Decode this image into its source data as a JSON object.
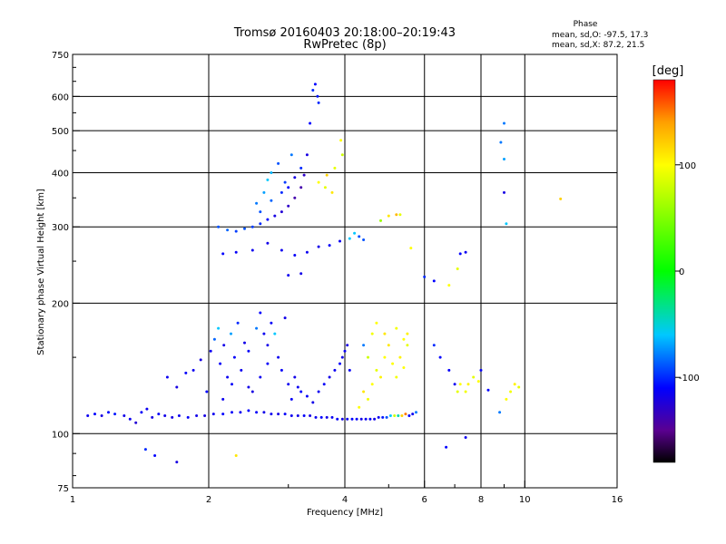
{
  "chart_data": {
    "type": "scatter",
    "title": "Tromsø 20160403 20:18:00–20:19:43",
    "subtitle": "RwPretec (8p)",
    "xlabel": "Frequency [MHz]",
    "ylabel": "Stationary phase Virtual Height [km]",
    "x_scale": "log",
    "y_scale": "log",
    "xlim": [
      1,
      16
    ],
    "ylim": [
      75,
      750
    ],
    "grid": true,
    "x_ticks": [
      {
        "value": 1,
        "label": "1"
      },
      {
        "value": 2,
        "label": "2"
      },
      {
        "value": 4,
        "label": "4"
      },
      {
        "value": 6,
        "label": "6"
      },
      {
        "value": 8,
        "label": "8"
      },
      {
        "value": 10,
        "label": "10"
      },
      {
        "value": 16,
        "label": "16"
      }
    ],
    "y_ticks": [
      {
        "value": 75,
        "label": "75"
      },
      {
        "value": 100,
        "label": "100"
      },
      {
        "value": 200,
        "label": "200"
      },
      {
        "value": 300,
        "label": "300"
      },
      {
        "value": 400,
        "label": "400"
      },
      {
        "value": 500,
        "label": "500"
      },
      {
        "value": 600,
        "label": "600"
      },
      {
        "value": 750,
        "label": "750"
      }
    ],
    "x_minor_ticks": [
      3,
      5,
      7,
      9
    ],
    "y_minor_ticks": [
      80,
      90,
      150,
      250,
      350,
      450,
      550,
      650,
      700
    ],
    "phase_stats": {
      "title": "Phase",
      "line_o": "mean, sd,O: -97.5, 17.3",
      "line_x": "mean, sd,X:  87.2, 21.5"
    },
    "colorbar": {
      "label": "[deg]",
      "range": [
        -180,
        180
      ],
      "ticks": [
        {
          "value": 100,
          "label": "100"
        },
        {
          "value": 0,
          "label": "0"
        },
        {
          "value": -100,
          "label": "-100"
        }
      ],
      "stops": [
        {
          "value": -180,
          "color": "#000000"
        },
        {
          "value": -150,
          "color": "#5a0090"
        },
        {
          "value": -110,
          "color": "#0000ff"
        },
        {
          "value": -60,
          "color": "#00c8ff"
        },
        {
          "value": 0,
          "color": "#00ff00"
        },
        {
          "value": 70,
          "color": "#b4ff00"
        },
        {
          "value": 100,
          "color": "#ffff00"
        },
        {
          "value": 140,
          "color": "#ffa000"
        },
        {
          "value": 180,
          "color": "#ff0000"
        }
      ]
    },
    "points": [
      [
        1.08,
        110,
        -115
      ],
      [
        1.12,
        111,
        -110
      ],
      [
        1.16,
        110,
        -120
      ],
      [
        1.2,
        112,
        -108
      ],
      [
        1.24,
        111,
        -105
      ],
      [
        1.3,
        110,
        -118
      ],
      [
        1.34,
        108,
        -115
      ],
      [
        1.38,
        106,
        -125
      ],
      [
        1.42,
        112,
        -112
      ],
      [
        1.46,
        114,
        -115
      ],
      [
        1.5,
        109,
        -120
      ],
      [
        1.55,
        111,
        -112
      ],
      [
        1.6,
        110,
        -118
      ],
      [
        1.66,
        109,
        -120
      ],
      [
        1.72,
        110,
        -115
      ],
      [
        1.8,
        109,
        -112
      ],
      [
        1.88,
        110,
        -118
      ],
      [
        1.96,
        110,
        -120
      ],
      [
        2.05,
        111,
        -115
      ],
      [
        2.15,
        111,
        -110
      ],
      [
        2.25,
        112,
        -112
      ],
      [
        2.35,
        112,
        -115
      ],
      [
        2.45,
        113,
        -110
      ],
      [
        2.55,
        112,
        -112
      ],
      [
        2.65,
        112,
        -118
      ],
      [
        2.75,
        111,
        -115
      ],
      [
        2.85,
        111,
        -120
      ],
      [
        2.95,
        111,
        -112
      ],
      [
        3.05,
        110,
        -115
      ],
      [
        3.15,
        110,
        -118
      ],
      [
        3.25,
        110,
        -112
      ],
      [
        3.35,
        110,
        -120
      ],
      [
        3.45,
        109,
        -115
      ],
      [
        3.55,
        109,
        -110
      ],
      [
        3.65,
        109,
        -118
      ],
      [
        3.75,
        109,
        -115
      ],
      [
        3.85,
        108,
        -112
      ],
      [
        3.95,
        108,
        -118
      ],
      [
        4.05,
        108,
        -115
      ],
      [
        4.15,
        108,
        -110
      ],
      [
        4.25,
        108,
        -112
      ],
      [
        4.35,
        108,
        -118
      ],
      [
        4.45,
        108,
        -115
      ],
      [
        4.55,
        108,
        -112
      ],
      [
        4.65,
        108,
        -118
      ],
      [
        4.75,
        109,
        -115
      ],
      [
        4.85,
        109,
        -105
      ],
      [
        4.95,
        109,
        -90
      ],
      [
        5.05,
        110,
        -60
      ],
      [
        5.15,
        110,
        80
      ],
      [
        5.25,
        110,
        -40
      ],
      [
        5.35,
        110,
        120
      ],
      [
        5.45,
        111,
        150
      ],
      [
        5.55,
        110,
        -110
      ],
      [
        5.65,
        111,
        -115
      ],
      [
        5.75,
        112,
        -80
      ],
      [
        1.62,
        135,
        -115
      ],
      [
        1.7,
        128,
        -120
      ],
      [
        1.78,
        138,
        -112
      ],
      [
        1.85,
        140,
        -115
      ],
      [
        1.92,
        148,
        -120
      ],
      [
        1.98,
        125,
        -110
      ],
      [
        2.02,
        155,
        -115
      ],
      [
        2.06,
        165,
        -85
      ],
      [
        2.1,
        175,
        -60
      ],
      [
        2.12,
        145,
        -112
      ],
      [
        2.16,
        160,
        -118
      ],
      [
        2.2,
        135,
        -115
      ],
      [
        2.24,
        170,
        -70
      ],
      [
        2.28,
        150,
        -112
      ],
      [
        2.32,
        180,
        -100
      ],
      [
        2.36,
        140,
        -115
      ],
      [
        2.4,
        162,
        -118
      ],
      [
        2.45,
        155,
        -112
      ],
      [
        2.5,
        125,
        -120
      ],
      [
        2.55,
        175,
        -80
      ],
      [
        2.6,
        190,
        -110
      ],
      [
        2.65,
        170,
        -115
      ],
      [
        2.7,
        160,
        -118
      ],
      [
        2.75,
        180,
        -112
      ],
      [
        2.8,
        170,
        -60
      ],
      [
        2.85,
        150,
        -115
      ],
      [
        2.9,
        140,
        -112
      ],
      [
        2.95,
        185,
        -118
      ],
      [
        3.0,
        130,
        -115
      ],
      [
        3.05,
        120,
        -112
      ],
      [
        3.1,
        135,
        -118
      ],
      [
        3.15,
        128,
        -115
      ],
      [
        3.2,
        125,
        -110
      ],
      [
        3.3,
        122,
        -112
      ],
      [
        3.4,
        118,
        -118
      ],
      [
        3.5,
        125,
        -115
      ],
      [
        3.6,
        130,
        -112
      ],
      [
        3.7,
        135,
        -118
      ],
      [
        3.8,
        140,
        -115
      ],
      [
        3.9,
        145,
        -112
      ],
      [
        3.95,
        150,
        -118
      ],
      [
        4.0,
        155,
        -115
      ],
      [
        4.05,
        160,
        -120
      ],
      [
        4.1,
        140,
        -112
      ],
      [
        2.15,
        120,
        -115
      ],
      [
        2.25,
        130,
        -112
      ],
      [
        2.45,
        128,
        -118
      ],
      [
        2.6,
        135,
        -115
      ],
      [
        2.7,
        145,
        -112
      ],
      [
        2.1,
        300,
        -90
      ],
      [
        2.2,
        295,
        -85
      ],
      [
        2.3,
        293,
        -95
      ],
      [
        2.4,
        297,
        -90
      ],
      [
        2.5,
        300,
        -95
      ],
      [
        2.6,
        305,
        -100
      ],
      [
        2.7,
        312,
        -110
      ],
      [
        2.8,
        318,
        -120
      ],
      [
        2.9,
        325,
        -125
      ],
      [
        3.0,
        335,
        -130
      ],
      [
        3.1,
        350,
        -140
      ],
      [
        3.2,
        370,
        -140
      ],
      [
        3.25,
        395,
        -130
      ],
      [
        3.3,
        440,
        -120
      ],
      [
        3.35,
        520,
        -110
      ],
      [
        3.4,
        620,
        -100
      ],
      [
        3.44,
        640,
        -110
      ],
      [
        3.48,
        600,
        -105
      ],
      [
        3.5,
        580,
        -100
      ],
      [
        2.55,
        340,
        -80
      ],
      [
        2.65,
        360,
        -70
      ],
      [
        2.7,
        385,
        -60
      ],
      [
        2.75,
        400,
        -65
      ],
      [
        2.85,
        420,
        -90
      ],
      [
        2.95,
        380,
        -95
      ],
      [
        3.05,
        440,
        -80
      ],
      [
        2.6,
        325,
        -90
      ],
      [
        2.75,
        345,
        -85
      ],
      [
        2.9,
        360,
        -100
      ],
      [
        3.0,
        370,
        -110
      ],
      [
        3.1,
        390,
        -120
      ],
      [
        3.2,
        410,
        -100
      ],
      [
        2.15,
        260,
        -110
      ],
      [
        2.3,
        262,
        -112
      ],
      [
        2.5,
        265,
        -115
      ],
      [
        2.7,
        275,
        -118
      ],
      [
        2.9,
        265,
        -115
      ],
      [
        3.1,
        258,
        -112
      ],
      [
        3.3,
        262,
        -115
      ],
      [
        3.5,
        270,
        -118
      ],
      [
        3.7,
        272,
        -112
      ],
      [
        3.9,
        278,
        -115
      ],
      [
        4.1,
        282,
        -60
      ],
      [
        4.3,
        285,
        -90
      ],
      [
        3.0,
        232,
        -115
      ],
      [
        3.2,
        234,
        -118
      ],
      [
        3.5,
        380,
        100
      ],
      [
        3.65,
        395,
        120
      ],
      [
        3.8,
        410,
        90
      ],
      [
        3.95,
        440,
        80
      ],
      [
        3.92,
        475,
        100
      ],
      [
        3.75,
        360,
        110
      ],
      [
        3.62,
        370,
        90
      ],
      [
        4.3,
        115,
        100
      ],
      [
        4.4,
        125,
        110
      ],
      [
        4.5,
        120,
        95
      ],
      [
        4.6,
        130,
        100
      ],
      [
        4.7,
        140,
        90
      ],
      [
        4.8,
        135,
        105
      ],
      [
        4.9,
        150,
        100
      ],
      [
        5.0,
        160,
        110
      ],
      [
        5.1,
        145,
        100
      ],
      [
        5.2,
        135,
        95
      ],
      [
        5.3,
        150,
        105
      ],
      [
        5.4,
        142,
        100
      ],
      [
        5.5,
        160,
        90
      ],
      [
        4.5,
        150,
        80
      ],
      [
        4.4,
        160,
        -80
      ],
      [
        4.6,
        170,
        95
      ],
      [
        4.7,
        180,
        100
      ],
      [
        4.9,
        170,
        110
      ],
      [
        5.2,
        175,
        95
      ],
      [
        5.4,
        165,
        100
      ],
      [
        5.5,
        170,
        105
      ],
      [
        6.3,
        160,
        -100
      ],
      [
        6.5,
        150,
        -110
      ],
      [
        6.8,
        140,
        -112
      ],
      [
        7.0,
        130,
        -115
      ],
      [
        7.1,
        125,
        90
      ],
      [
        7.2,
        130,
        100
      ],
      [
        7.4,
        125,
        95
      ],
      [
        7.5,
        130,
        105
      ],
      [
        7.7,
        135,
        90
      ],
      [
        7.9,
        132,
        100
      ],
      [
        8.3,
        126,
        -110
      ],
      [
        8.0,
        140,
        -112
      ],
      [
        9.1,
        120,
        100
      ],
      [
        9.3,
        125,
        95
      ],
      [
        9.5,
        130,
        105
      ],
      [
        9.7,
        128,
        90
      ],
      [
        4.2,
        290,
        -60
      ],
      [
        4.4,
        280,
        -90
      ],
      [
        4.8,
        310,
        60
      ],
      [
        5.0,
        318,
        110
      ],
      [
        5.2,
        320,
        130
      ],
      [
        5.3,
        320,
        90
      ],
      [
        5.6,
        268,
        100
      ],
      [
        6.0,
        230,
        -100
      ],
      [
        6.3,
        225,
        -110
      ],
      [
        6.8,
        220,
        100
      ],
      [
        7.1,
        240,
        90
      ],
      [
        7.2,
        260,
        -110
      ],
      [
        7.4,
        262,
        -115
      ],
      [
        1.45,
        92,
        -100
      ],
      [
        1.52,
        89,
        -110
      ],
      [
        1.7,
        86,
        -120
      ],
      [
        2.3,
        89,
        110
      ],
      [
        6.7,
        93,
        -110
      ],
      [
        7.4,
        98,
        -115
      ],
      [
        8.8,
        112,
        -80
      ],
      [
        9.0,
        520,
        -80
      ],
      [
        9.0,
        430,
        -70
      ],
      [
        9.0,
        360,
        -120
      ],
      [
        9.1,
        305,
        -60
      ],
      [
        12.0,
        348,
        120
      ],
      [
        8.85,
        470,
        -80
      ]
    ]
  }
}
